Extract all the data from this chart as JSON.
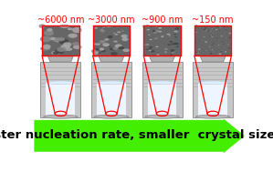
{
  "labels": [
    "~6000 nm",
    "~3000 nm",
    "~900 nm",
    "~150 nm"
  ],
  "label_color": "#ff0000",
  "label_fontsize": 7.0,
  "arrow_text": "Faster nucleation rate, smaller  crystal size !",
  "arrow_color": "#44ee00",
  "arrow_text_color": "#000000",
  "arrow_text_fontsize": 9.5,
  "bg_color": "#ffffff",
  "vial_centers": [
    0.125,
    0.365,
    0.605,
    0.845
  ],
  "red_line_color": "#ff0000"
}
